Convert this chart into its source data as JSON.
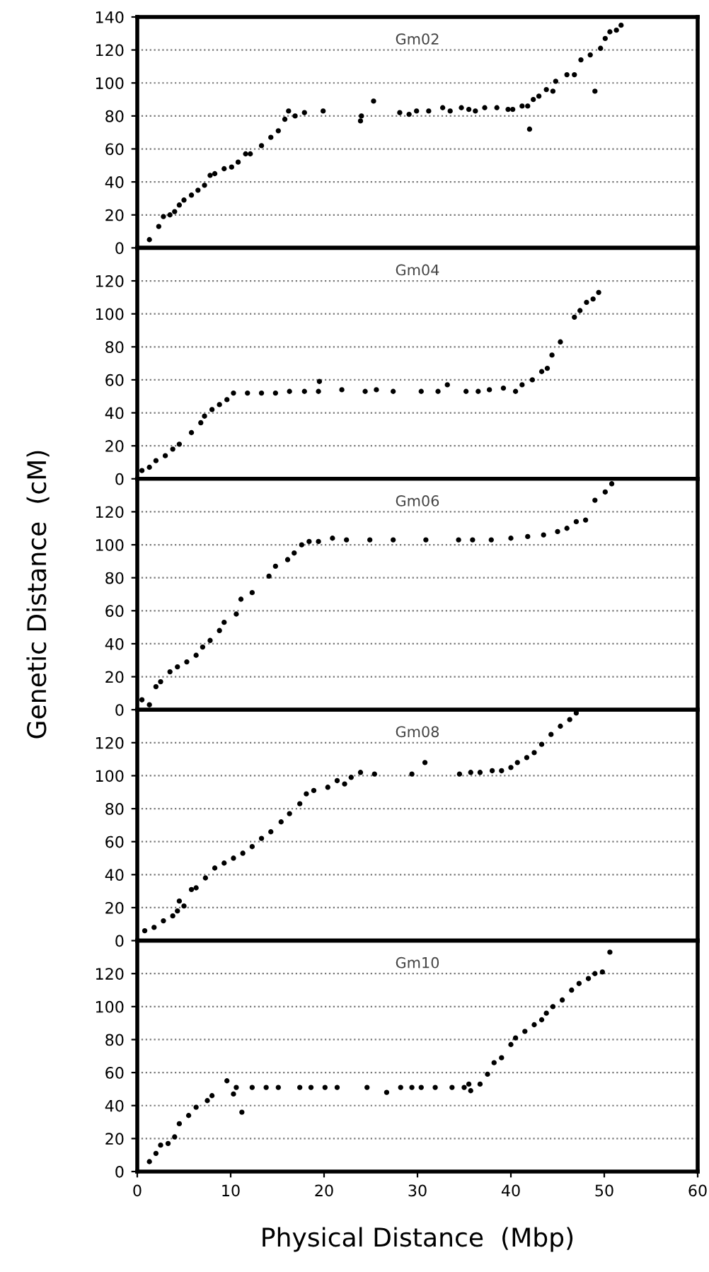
{
  "chart_data": [
    {
      "type": "scatter",
      "title": "Gm02",
      "marker": "circle",
      "grid": "y",
      "tick_labels": "y",
      "xlim": [
        0,
        60
      ],
      "ylim": [
        0,
        140
      ],
      "yticks": [
        0,
        20,
        40,
        60,
        80,
        100,
        120,
        140
      ],
      "series": [
        {
          "color": "#000000",
          "x": [
            1.3,
            2.3,
            2.8,
            3.5,
            4,
            4.5,
            5,
            5.8,
            6.5,
            7.2,
            7.8,
            8.3,
            9.3,
            10.1,
            10.8,
            11.6,
            12.1,
            13.3,
            14.3,
            15.1,
            15.8,
            16.2,
            16.9,
            17.9,
            19.9,
            23.9,
            24.0,
            25.3,
            28.1,
            29.1,
            29.9,
            31.2,
            32.7,
            33.5,
            34.7,
            35.5,
            36.2,
            37.2,
            38.5,
            39.7,
            40.2,
            41.2,
            41.8,
            42.0,
            42.4,
            43.0,
            43.8,
            44.5,
            44.8,
            46.0,
            46.8,
            47.5,
            48.5,
            49.0,
            49.6,
            50.1,
            50.6,
            51.3,
            51.8
          ],
          "values": [
            5,
            13,
            19,
            20,
            22,
            26,
            29,
            32,
            35,
            38,
            44,
            45,
            48,
            49,
            52,
            57,
            57,
            62,
            67,
            71,
            78,
            83,
            80,
            82,
            83,
            77,
            80,
            89,
            82,
            81,
            83,
            83,
            85,
            83,
            85,
            84,
            83,
            85,
            85,
            84,
            84,
            86,
            86,
            72,
            90,
            92,
            96,
            95,
            101,
            105,
            105,
            114,
            117,
            95,
            121,
            127,
            131,
            132,
            135
          ]
        }
      ]
    },
    {
      "type": "scatter",
      "title": "Gm04",
      "marker": "circle",
      "grid": "y",
      "tick_labels": "y",
      "xlim": [
        0,
        60
      ],
      "ylim": [
        0,
        140
      ],
      "yticks": [
        0,
        20,
        40,
        60,
        80,
        100,
        120
      ],
      "series": [
        {
          "color": "#000000",
          "x": [
            0.5,
            1.3,
            2.0,
            3.0,
            3.8,
            4.5,
            5.8,
            6.8,
            7.2,
            8.0,
            8.8,
            9.6,
            10.3,
            11.8,
            13.3,
            14.8,
            16.3,
            17.9,
            19.4,
            19.5,
            21.9,
            24.4,
            25.6,
            27.4,
            30.4,
            32.2,
            33.2,
            35.2,
            36.5,
            37.7,
            39.2,
            40.5,
            41.2,
            42.3,
            43.3,
            43.9,
            44.4,
            45.3,
            46.8,
            47.4,
            48.1,
            48.8,
            49.4
          ],
          "values": [
            5,
            7,
            11,
            14,
            18,
            21,
            28,
            34,
            38,
            42,
            45,
            48,
            52,
            52,
            52,
            52,
            53,
            53,
            53,
            59,
            54,
            53,
            54,
            53,
            53,
            53,
            57,
            53,
            53,
            54,
            55,
            53,
            57,
            60,
            65,
            67,
            75,
            83,
            98,
            102,
            107,
            109,
            113
          ]
        }
      ]
    },
    {
      "type": "scatter",
      "title": "Gm06",
      "ylabel": "Genetic Distance  (cM)",
      "marker": "circle",
      "grid": "y",
      "tick_labels": "y",
      "xlim": [
        0,
        60
      ],
      "ylim": [
        0,
        140
      ],
      "yticks": [
        0,
        20,
        40,
        60,
        80,
        100,
        120
      ],
      "series": [
        {
          "color": "#000000",
          "x": [
            0.5,
            1.3,
            2.0,
            2.5,
            3.5,
            4.3,
            5.3,
            6.3,
            7.0,
            7.8,
            8.8,
            9.3,
            10.6,
            11.1,
            12.3,
            14.1,
            14.8,
            16.1,
            16.8,
            17.6,
            18.4,
            19.4,
            20.9,
            22.4,
            24.9,
            27.4,
            30.9,
            34.4,
            35.9,
            37.9,
            40.0,
            41.8,
            43.5,
            45.0,
            46.0,
            47.0,
            48.0,
            49.0,
            50.1,
            50.8
          ],
          "values": [
            6,
            3,
            14,
            17,
            23,
            26,
            29,
            33,
            38,
            42,
            48,
            53,
            58,
            67,
            71,
            81,
            87,
            91,
            95,
            100,
            102,
            102,
            104,
            103,
            103,
            103,
            103,
            103,
            103,
            103,
            104,
            105,
            106,
            108,
            110,
            114,
            115,
            127,
            132,
            137
          ]
        }
      ]
    },
    {
      "type": "scatter",
      "title": "Gm08",
      "marker": "circle",
      "grid": "y",
      "tick_labels": "y",
      "xlim": [
        0,
        60
      ],
      "ylim": [
        0,
        140
      ],
      "yticks": [
        0,
        20,
        40,
        60,
        80,
        100,
        120
      ],
      "series": [
        {
          "color": "#000000",
          "x": [
            0.8,
            1.8,
            2.8,
            3.8,
            4.3,
            4.5,
            5.0,
            5.8,
            6.3,
            7.3,
            8.3,
            9.3,
            10.3,
            11.3,
            12.3,
            13.3,
            14.3,
            15.4,
            16.3,
            17.4,
            18.1,
            18.9,
            20.4,
            21.4,
            22.2,
            22.9,
            23.9,
            25.4,
            29.4,
            30.8,
            34.5,
            35.7,
            36.7,
            38.0,
            39.0,
            40.0,
            40.7,
            41.7,
            42.5,
            43.3,
            44.3,
            45.3,
            46.3,
            47.0
          ],
          "values": [
            6,
            8,
            12,
            15,
            18,
            24,
            21,
            31,
            32,
            38,
            44,
            47,
            50,
            53,
            57,
            62,
            66,
            72,
            77,
            83,
            89,
            91,
            93,
            97,
            95,
            99,
            102,
            101,
            101,
            108,
            101,
            102,
            102,
            103,
            103,
            105,
            108,
            111,
            114,
            119,
            125,
            130,
            134,
            138
          ]
        }
      ]
    },
    {
      "type": "scatter",
      "title": "Gm10",
      "xlabel": "Physical Distance  (Mbp)",
      "marker": "circle",
      "grid": "y",
      "xlim": [
        0,
        60
      ],
      "xticks": [
        0,
        10,
        20,
        30,
        40,
        50,
        60
      ],
      "ylim": [
        0,
        140
      ],
      "yticks": [
        0,
        20,
        40,
        60,
        80,
        100,
        120
      ],
      "series": [
        {
          "color": "#000000",
          "x": [
            1.3,
            2.0,
            2.5,
            3.3,
            4.0,
            4.5,
            5.5,
            6.3,
            7.5,
            8.0,
            9.6,
            10.3,
            10.6,
            11.2,
            12.3,
            13.8,
            15.1,
            17.4,
            18.6,
            20.1,
            21.4,
            24.6,
            26.7,
            28.2,
            29.4,
            30.4,
            31.9,
            33.7,
            35.0,
            35.5,
            35.7,
            36.7,
            37.5,
            38.2,
            39.0,
            40.0,
            40.5,
            41.5,
            42.5,
            43.3,
            43.8,
            44.5,
            45.5,
            46.5,
            47.3,
            48.3,
            49.0,
            49.8,
            50.6
          ],
          "values": [
            6,
            11,
            16,
            17,
            21,
            29,
            34,
            39,
            43,
            46,
            55,
            47,
            51,
            36,
            51,
            51,
            51,
            51,
            51,
            51,
            51,
            51,
            48,
            51,
            51,
            51,
            51,
            51,
            51,
            53,
            49,
            53,
            59,
            66,
            69,
            77,
            81,
            85,
            89,
            92,
            96,
            100,
            104,
            110,
            114,
            117,
            120,
            121,
            133
          ]
        }
      ]
    }
  ]
}
